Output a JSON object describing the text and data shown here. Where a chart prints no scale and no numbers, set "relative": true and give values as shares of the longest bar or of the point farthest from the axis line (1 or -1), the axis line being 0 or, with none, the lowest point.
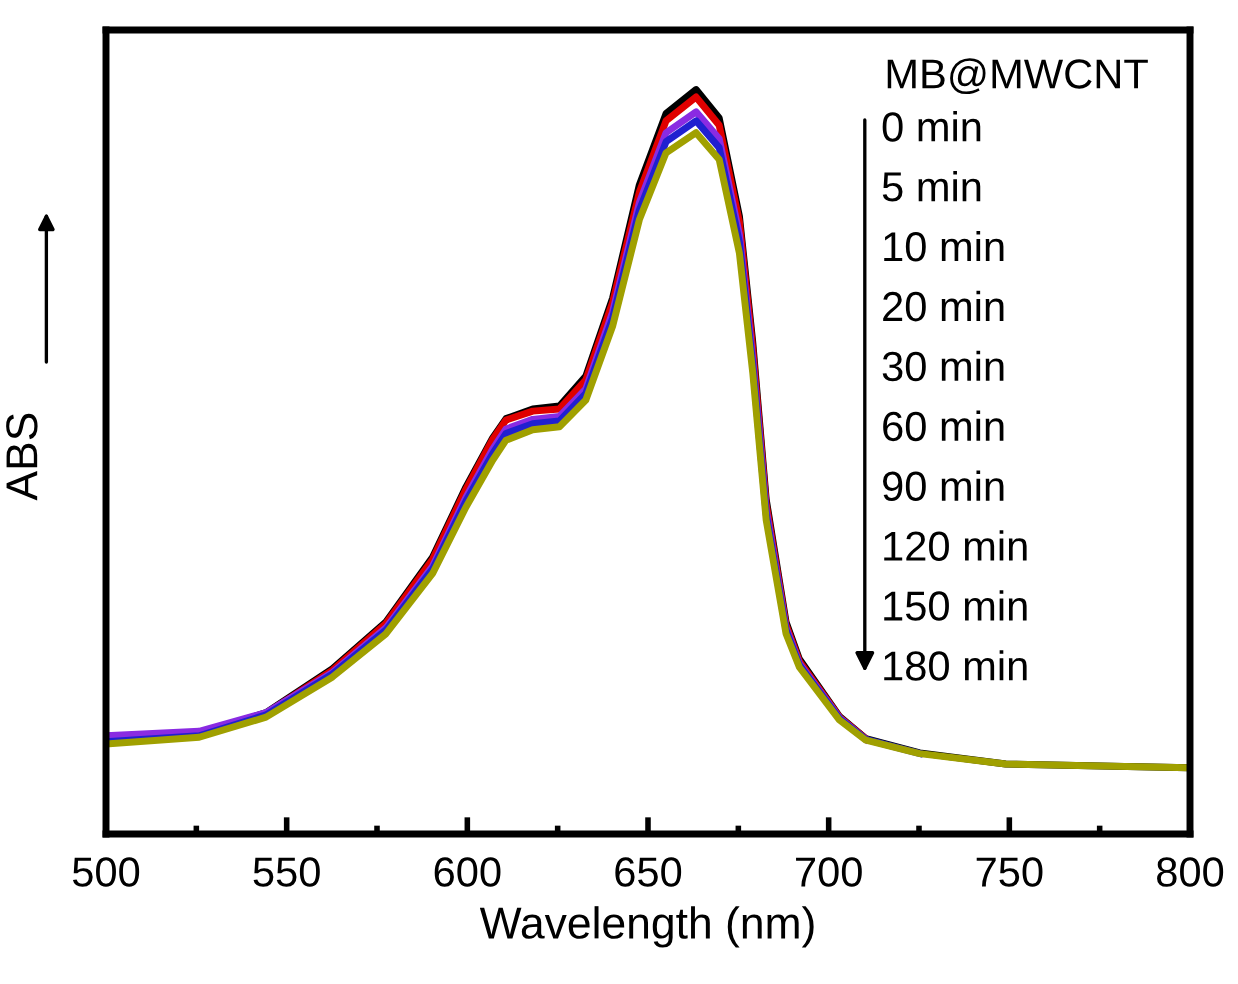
{
  "chart_data": {
    "type": "line",
    "relative": true,
    "xlabel": "Wavelength (nm)",
    "ylabel": "ABS",
    "xlim": [
      500,
      800
    ],
    "xticks": [
      500,
      {
        "value": 525,
        "label": null
      },
      550,
      {
        "value": 575,
        "label": null
      },
      600,
      {
        "value": 625,
        "label": null
      },
      650,
      {
        "value": 675,
        "label": null
      },
      700,
      {
        "value": 725,
        "label": null
      },
      750,
      {
        "value": 775,
        "label": null
      },
      800
    ],
    "x": [
      500,
      525.8,
      544.3,
      562.7,
      577.5,
      590.4,
      599.6,
      607,
      610.7,
      618.1,
      625.5,
      632.8,
      640.2,
      647.6,
      655,
      663.3,
      669.7,
      675.3,
      679,
      682.7,
      688.2,
      691.9,
      703,
      710.3,
      725.2,
      749,
      798.8
    ],
    "series": [
      {
        "color": "#000000",
        "values": [
          0.128,
          0.135,
          0.163,
          0.222,
          0.285,
          0.372,
          0.466,
          0.532,
          0.558,
          0.571,
          0.575,
          0.615,
          0.72,
          0.872,
          0.968,
          1.0,
          0.962,
          0.83,
          0.66,
          0.45,
          0.285,
          0.235,
          0.158,
          0.128,
          0.109,
          0.094,
          0.089
        ]
      },
      {
        "color": "#e00000",
        "values": [
          0.126,
          0.134,
          0.162,
          0.22,
          0.283,
          0.369,
          0.463,
          0.53,
          0.556,
          0.568,
          0.571,
          0.61,
          0.714,
          0.862,
          0.958,
          0.99,
          0.952,
          0.822,
          0.652,
          0.444,
          0.281,
          0.232,
          0.157,
          0.128,
          null,
          null,
          null
        ]
      },
      {
        "color": "#8a2be2",
        "values": [
          0.132,
          0.138,
          0.163,
          0.217,
          0.277,
          0.36,
          0.452,
          0.517,
          0.544,
          0.557,
          0.561,
          0.598,
          0.701,
          0.848,
          0.942,
          0.97,
          0.934,
          0.805,
          0.638,
          0.436,
          0.277,
          0.229,
          0.156,
          0.127,
          null,
          null,
          null
        ]
      },
      {
        "color": "#2020d0",
        "values": [
          0.124,
          0.132,
          0.16,
          0.215,
          0.274,
          0.356,
          0.447,
          0.511,
          0.538,
          0.551,
          0.555,
          0.592,
          0.693,
          0.838,
          0.93,
          0.958,
          0.922,
          0.795,
          0.63,
          0.43,
          0.274,
          0.227,
          0.155,
          0.127,
          0.108,
          null,
          null
        ]
      },
      {
        "color": "#a0a000",
        "values": [
          0.121,
          0.13,
          0.157,
          0.211,
          0.269,
          0.35,
          0.439,
          0.502,
          0.529,
          0.543,
          0.547,
          0.583,
          0.682,
          0.825,
          0.915,
          0.942,
          0.906,
          0.78,
          0.619,
          0.422,
          0.269,
          0.224,
          0.153,
          0.126,
          0.108,
          0.094,
          0.089
        ]
      }
    ],
    "annotations": [
      "MB@MWCNT",
      "0 min",
      "5 min",
      "10 min",
      "20 min",
      "30 min",
      "60 min",
      "90 min",
      "120 min",
      "150 min",
      "180 min"
    ],
    "line_style": "solid",
    "grid": false,
    "legend": false
  }
}
